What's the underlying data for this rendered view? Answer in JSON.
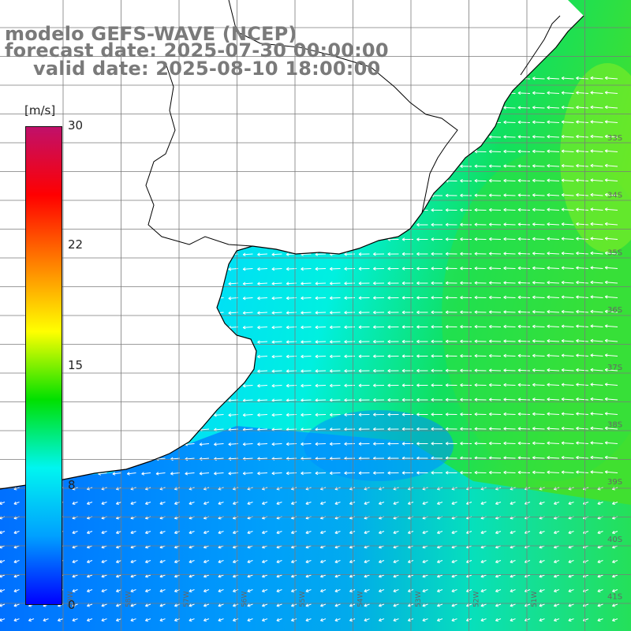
{
  "title": {
    "model": "modelo GEFS-WAVE (NCEP)",
    "forecast": "forecast date: 2025-07-30 00:00:00",
    "valid": "valid date: 2025-08-10 18:00:00"
  },
  "colorbar": {
    "unit": "[m/s]",
    "min": 0,
    "max": 30,
    "ticks": [
      "0",
      "8",
      "15",
      "22",
      "30"
    ],
    "stops": [
      "#0000ff",
      "#00a0ff",
      "#00f5f0",
      "#00e000",
      "#ffff00",
      "#ff8000",
      "#ff0000",
      "#c0106a"
    ]
  },
  "map": {
    "land_color": "#ffffff",
    "coast_color": "#000000",
    "grid_color": "#7a7a7a",
    "lat_labels": [
      "33S",
      "34S",
      "35S",
      "36S",
      "37S",
      "38S",
      "39S",
      "40S",
      "41S"
    ],
    "lon_labels": [
      "59W",
      "58W",
      "57W",
      "56W",
      "55W",
      "54W",
      "53W",
      "52W",
      "51W"
    ]
  },
  "wind": {
    "unit": "m/s",
    "description": "Wind speed shading with white direction arrows"
  }
}
